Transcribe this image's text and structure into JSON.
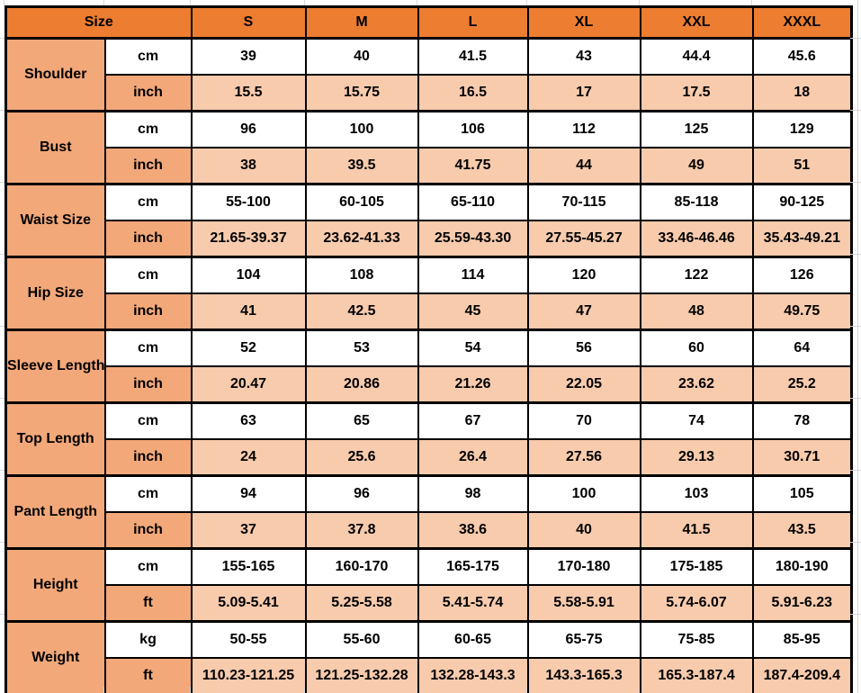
{
  "colors": {
    "header_orange": "#ED7D31",
    "label_salmon": "#F3A879",
    "row_peach": "#F8CBAD",
    "border_black": "#000000",
    "gridline_gray": "#D9D9D9"
  },
  "table": {
    "header": {
      "size_label": "Size",
      "columns": [
        "S",
        "M",
        "L",
        "XL",
        "XXL",
        "XXXL"
      ]
    },
    "rows": [
      {
        "label": "Shoulder",
        "units": [
          {
            "unit": "cm",
            "values": [
              "39",
              "40",
              "41.5",
              "43",
              "44.4",
              "45.6"
            ]
          },
          {
            "unit": "inch",
            "values": [
              "15.5",
              "15.75",
              "16.5",
              "17",
              "17.5",
              "18"
            ]
          }
        ]
      },
      {
        "label": "Bust",
        "units": [
          {
            "unit": "cm",
            "values": [
              "96",
              "100",
              "106",
              "112",
              "125",
              "129"
            ]
          },
          {
            "unit": "inch",
            "values": [
              "38",
              "39.5",
              "41.75",
              "44",
              "49",
              "51"
            ]
          }
        ]
      },
      {
        "label": "Waist Size",
        "units": [
          {
            "unit": "cm",
            "values": [
              "55-100",
              "60-105",
              "65-110",
              "70-115",
              "85-118",
              "90-125"
            ]
          },
          {
            "unit": "inch",
            "values": [
              "21.65-39.37",
              "23.62-41.33",
              "25.59-43.30",
              "27.55-45.27",
              "33.46-46.46",
              "35.43-49.21"
            ]
          }
        ]
      },
      {
        "label": "Hip Size",
        "units": [
          {
            "unit": "cm",
            "values": [
              "104",
              "108",
              "114",
              "120",
              "122",
              "126"
            ]
          },
          {
            "unit": "inch",
            "values": [
              "41",
              "42.5",
              "45",
              "47",
              "48",
              "49.75"
            ]
          }
        ]
      },
      {
        "label": "Sleeve Length",
        "units": [
          {
            "unit": "cm",
            "values": [
              "52",
              "53",
              "54",
              "56",
              "60",
              "64"
            ]
          },
          {
            "unit": "inch",
            "values": [
              "20.47",
              "20.86",
              "21.26",
              "22.05",
              "23.62",
              "25.2"
            ]
          }
        ]
      },
      {
        "label": "Top Length",
        "units": [
          {
            "unit": "cm",
            "values": [
              "63",
              "65",
              "67",
              "70",
              "74",
              "78"
            ]
          },
          {
            "unit": "inch",
            "values": [
              "24",
              "25.6",
              "26.4",
              "27.56",
              "29.13",
              "30.71"
            ]
          }
        ]
      },
      {
        "label": "Pant Length",
        "units": [
          {
            "unit": "cm",
            "values": [
              "94",
              "96",
              "98",
              "100",
              "103",
              "105"
            ]
          },
          {
            "unit": "inch",
            "values": [
              "37",
              "37.8",
              "38.6",
              "40",
              "41.5",
              "43.5"
            ]
          }
        ]
      },
      {
        "label": "Height",
        "units": [
          {
            "unit": "cm",
            "values": [
              "155-165",
              "160-170",
              "165-175",
              "170-180",
              "175-185",
              "180-190"
            ]
          },
          {
            "unit": "ft",
            "values": [
              "5.09-5.41",
              "5.25-5.58",
              "5.41-5.74",
              "5.58-5.91",
              "5.74-6.07",
              "5.91-6.23"
            ]
          }
        ]
      },
      {
        "label": "Weight",
        "units": [
          {
            "unit": "kg",
            "values": [
              "50-55",
              "55-60",
              "60-65",
              "65-75",
              "75-85",
              "85-95"
            ]
          },
          {
            "unit": "ft",
            "values": [
              "110.23-121.25",
              "121.25-132.28",
              "132.28-143.3",
              "143.3-165.3",
              "165.3-187.4",
              "187.4-209.4"
            ]
          }
        ]
      }
    ]
  }
}
